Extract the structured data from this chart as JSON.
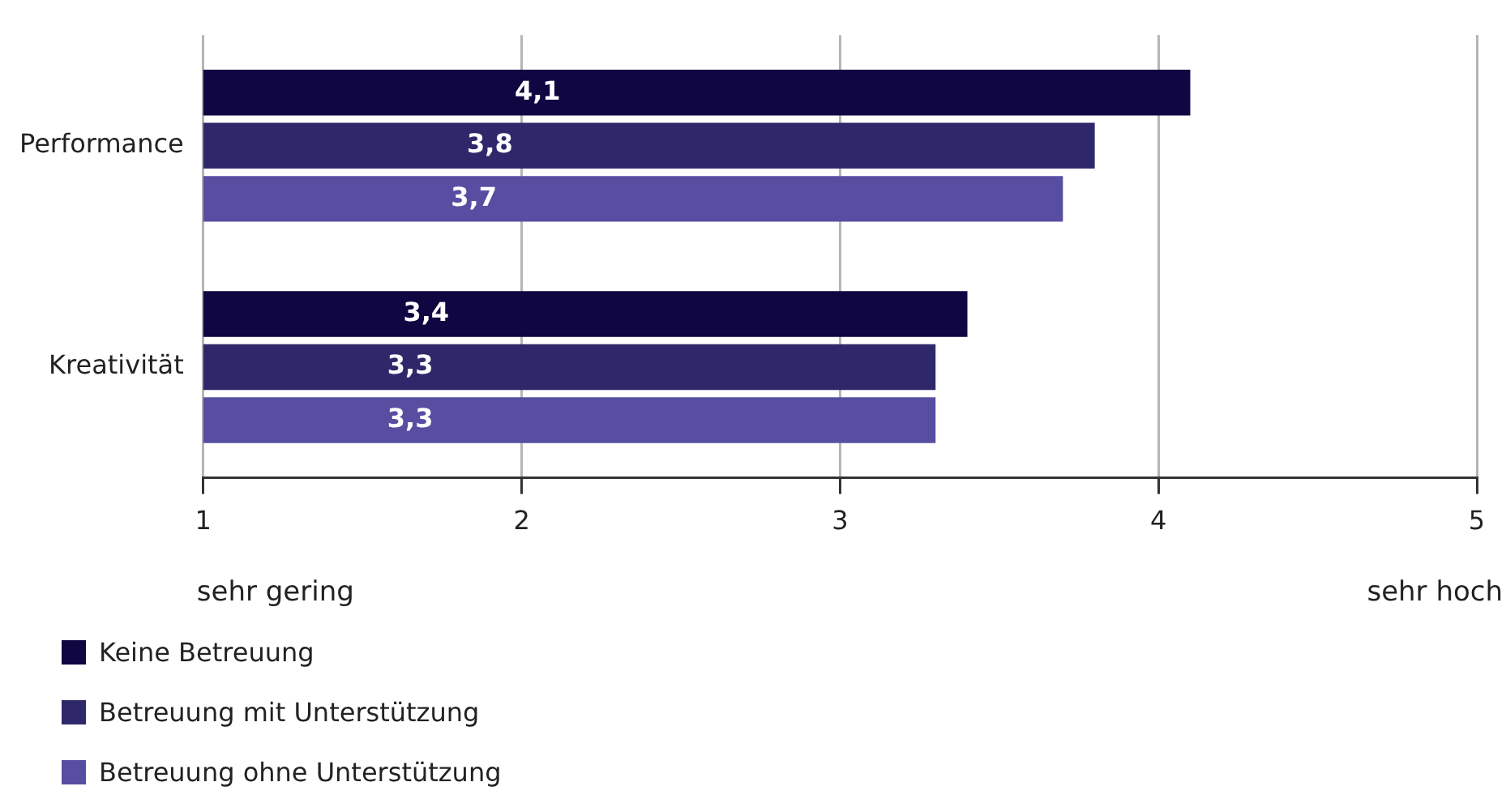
{
  "chart_data": {
    "type": "bar",
    "orientation": "horizontal",
    "categories": [
      "Performance",
      "Kreativität"
    ],
    "series": [
      {
        "name": "Keine Betreuung",
        "color": "#0f0642",
        "values": [
          4.1,
          3.4
        ],
        "value_labels": [
          "4,1",
          "3,4"
        ]
      },
      {
        "name": "Betreuung mit Unterstützung",
        "color": "#2e286b",
        "values": [
          3.8,
          3.3
        ],
        "value_labels": [
          "3,8",
          "3,3"
        ]
      },
      {
        "name": "Betreuung ohne Unterstützung",
        "color": "#574ea1",
        "values": [
          3.7,
          3.3
        ],
        "value_labels": [
          "3,7",
          "3,3"
        ]
      }
    ],
    "xlim": [
      1,
      5
    ],
    "xticks": [
      1,
      2,
      3,
      4,
      5
    ],
    "grid": "x",
    "legend": "bottom left",
    "annotations": [
      "sehr gering",
      "sehr hoch"
    ]
  }
}
